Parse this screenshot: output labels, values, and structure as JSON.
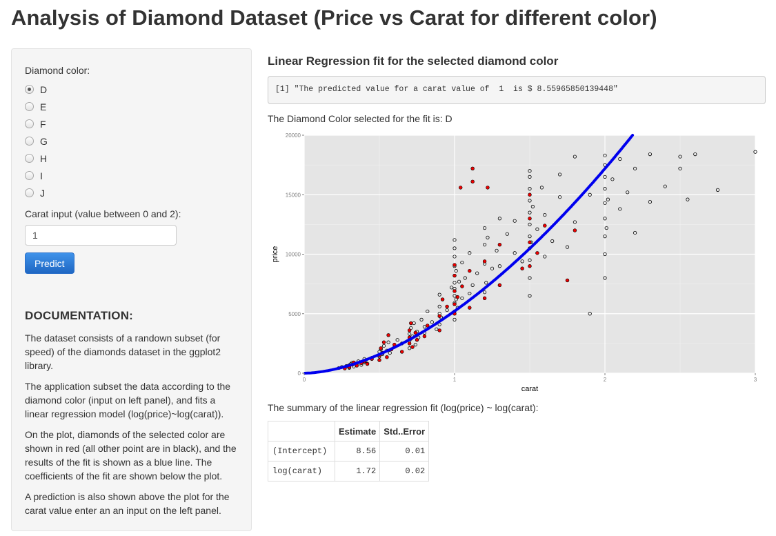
{
  "page": {
    "title": "Analysis of Diamond Dataset (Price vs Carat for different color)"
  },
  "sidebar": {
    "color_label": "Diamond color:",
    "color_options": [
      {
        "label": "D",
        "checked": true
      },
      {
        "label": "E",
        "checked": false
      },
      {
        "label": "F",
        "checked": false
      },
      {
        "label": "G",
        "checked": false
      },
      {
        "label": "H",
        "checked": false
      },
      {
        "label": "I",
        "checked": false
      },
      {
        "label": "J",
        "checked": false
      }
    ],
    "carat_label": "Carat input (value between 0 and 2):",
    "carat_value": "1",
    "predict_label": "Predict",
    "doc_heading": "DOCUMENTATION:",
    "doc_paragraphs": [
      "The dataset consists of a randown subset (for speed) of the diamonds dataset in the ggplot2 library.",
      "The application subset the data according to the diamond color (input on left panel), and fits a linear regression model (log(price)~log(carat)).",
      "On the plot, diamonds of the selected color are shown in red (all other point are in black), and the results of the fit is shown as a blue line. The coefficients of the fit are shown below the plot.",
      "A prediction is also shown above the plot for the carat value enter an an input on the left panel."
    ]
  },
  "main": {
    "heading": "Linear Regression fit for the selected diamond color",
    "prediction_text": "[1] \"The predicted value for a carat value of  1  is $ 8.55965850139448\"",
    "color_selected_text": "The Diamond Color selected for the fit is: D",
    "summary_text": "The summary of the linear regression fit (log(price) ~ log(carat):",
    "table": {
      "headers": [
        "",
        "Estimate",
        "Std..Error"
      ],
      "rows": [
        {
          "name": "(Intercept)",
          "estimate": "8.56",
          "std_error": "0.01"
        },
        {
          "name": "log(carat)",
          "estimate": "1.72",
          "std_error": "0.02"
        }
      ]
    }
  },
  "chart_data": {
    "type": "scatter",
    "xlabel": "carat",
    "ylabel": "price",
    "xlim": [
      0,
      3
    ],
    "ylim": [
      0,
      20000
    ],
    "xticks": [
      "0",
      "1",
      "2",
      "3"
    ],
    "yticks": [
      "0",
      "5000",
      "10000",
      "15000",
      "20000"
    ],
    "grid": true,
    "background": "#e5e5e5",
    "series": [
      {
        "color": "#000000",
        "marker": "open-circle",
        "points": [
          [
            0.23,
            430
          ],
          [
            0.25,
            520
          ],
          [
            0.28,
            600
          ],
          [
            0.3,
            680
          ],
          [
            0.3,
            450
          ],
          [
            0.31,
            780
          ],
          [
            0.32,
            900
          ],
          [
            0.33,
            560
          ],
          [
            0.35,
            800
          ],
          [
            0.36,
            1000
          ],
          [
            0.38,
            700
          ],
          [
            0.4,
            900
          ],
          [
            0.4,
            1200
          ],
          [
            0.41,
            1100
          ],
          [
            0.42,
            800
          ],
          [
            0.45,
            1300
          ],
          [
            0.5,
            1400
          ],
          [
            0.5,
            1800
          ],
          [
            0.5,
            1100
          ],
          [
            0.51,
            2000
          ],
          [
            0.52,
            1600
          ],
          [
            0.53,
            2300
          ],
          [
            0.55,
            1900
          ],
          [
            0.56,
            2600
          ],
          [
            0.57,
            1700
          ],
          [
            0.6,
            2200
          ],
          [
            0.62,
            2800
          ],
          [
            0.65,
            2500
          ],
          [
            0.7,
            2700
          ],
          [
            0.7,
            3300
          ],
          [
            0.7,
            2100
          ],
          [
            0.71,
            3800
          ],
          [
            0.71,
            2900
          ],
          [
            0.72,
            3100
          ],
          [
            0.73,
            4200
          ],
          [
            0.74,
            2400
          ],
          [
            0.75,
            3500
          ],
          [
            0.76,
            3000
          ],
          [
            0.78,
            4500
          ],
          [
            0.8,
            3400
          ],
          [
            0.8,
            3900
          ],
          [
            0.82,
            5200
          ],
          [
            0.85,
            4300
          ],
          [
            0.88,
            3700
          ],
          [
            0.9,
            4100
          ],
          [
            0.9,
            5000
          ],
          [
            0.9,
            5600
          ],
          [
            0.9,
            6600
          ],
          [
            0.91,
            4700
          ],
          [
            0.92,
            6200
          ],
          [
            0.95,
            5300
          ],
          [
            0.98,
            7200
          ],
          [
            1.0,
            4500
          ],
          [
            1.0,
            5200
          ],
          [
            1.0,
            5900
          ],
          [
            1.0,
            6500
          ],
          [
            1.0,
            7100
          ],
          [
            1.0,
            7600
          ],
          [
            1.0,
            8200
          ],
          [
            1.0,
            9000
          ],
          [
            1.0,
            9800
          ],
          [
            1.0,
            10500
          ],
          [
            1.0,
            11200
          ],
          [
            1.01,
            6200
          ],
          [
            1.01,
            8600
          ],
          [
            1.02,
            5500
          ],
          [
            1.03,
            7700
          ],
          [
            1.05,
            6300
          ],
          [
            1.05,
            9300
          ],
          [
            1.07,
            8000
          ],
          [
            1.1,
            6700
          ],
          [
            1.1,
            10100
          ],
          [
            1.12,
            7400
          ],
          [
            1.15,
            8400
          ],
          [
            1.2,
            6800
          ],
          [
            1.2,
            9200
          ],
          [
            1.2,
            10800
          ],
          [
            1.2,
            12200
          ],
          [
            1.21,
            7600
          ],
          [
            1.22,
            11400
          ],
          [
            1.25,
            8800
          ],
          [
            1.28,
            10300
          ],
          [
            1.3,
            9000
          ],
          [
            1.3,
            13000
          ],
          [
            1.3,
            7400
          ],
          [
            1.35,
            11700
          ],
          [
            1.4,
            10100
          ],
          [
            1.4,
            12800
          ],
          [
            1.45,
            9400
          ],
          [
            1.5,
            6500
          ],
          [
            1.5,
            8000
          ],
          [
            1.5,
            9500
          ],
          [
            1.5,
            10500
          ],
          [
            1.5,
            11500
          ],
          [
            1.5,
            12500
          ],
          [
            1.5,
            13500
          ],
          [
            1.5,
            14500
          ],
          [
            1.5,
            15500
          ],
          [
            1.5,
            16500
          ],
          [
            1.5,
            17000
          ],
          [
            1.51,
            11000
          ],
          [
            1.52,
            14000
          ],
          [
            1.55,
            12100
          ],
          [
            1.58,
            15600
          ],
          [
            1.6,
            9800
          ],
          [
            1.6,
            13300
          ],
          [
            1.65,
            11100
          ],
          [
            1.7,
            14800
          ],
          [
            1.7,
            16700
          ],
          [
            1.75,
            10600
          ],
          [
            1.8,
            12700
          ],
          [
            1.8,
            18200
          ],
          [
            1.9,
            15000
          ],
          [
            1.9,
            5000
          ],
          [
            2.0,
            8000
          ],
          [
            2.0,
            10000
          ],
          [
            2.0,
            11500
          ],
          [
            2.0,
            13000
          ],
          [
            2.0,
            14300
          ],
          [
            2.0,
            15500
          ],
          [
            2.0,
            16500
          ],
          [
            2.0,
            17500
          ],
          [
            2.0,
            18300
          ],
          [
            2.01,
            12200
          ],
          [
            2.02,
            14600
          ],
          [
            2.05,
            16300
          ],
          [
            2.1,
            13800
          ],
          [
            2.1,
            18000
          ],
          [
            2.15,
            15200
          ],
          [
            2.2,
            11800
          ],
          [
            2.2,
            17200
          ],
          [
            2.3,
            14400
          ],
          [
            2.3,
            18400
          ],
          [
            2.4,
            15700
          ],
          [
            2.5,
            17200
          ],
          [
            2.5,
            18200
          ],
          [
            2.55,
            14600
          ],
          [
            2.6,
            18400
          ],
          [
            2.75,
            15400
          ],
          [
            3.0,
            18600
          ]
        ]
      },
      {
        "color": "#ee0000",
        "marker": "filled-circle",
        "points": [
          [
            0.27,
            400
          ],
          [
            0.29,
            600
          ],
          [
            0.3,
            520
          ],
          [
            0.32,
            720
          ],
          [
            0.33,
            900
          ],
          [
            0.35,
            640
          ],
          [
            0.38,
            850
          ],
          [
            0.4,
            1000
          ],
          [
            0.42,
            780
          ],
          [
            0.45,
            1200
          ],
          [
            0.5,
            1500
          ],
          [
            0.5,
            1100
          ],
          [
            0.51,
            2100
          ],
          [
            0.52,
            1700
          ],
          [
            0.53,
            2600
          ],
          [
            0.55,
            1350
          ],
          [
            0.56,
            3200
          ],
          [
            0.58,
            2000
          ],
          [
            0.6,
            2400
          ],
          [
            0.65,
            1800
          ],
          [
            0.7,
            2500
          ],
          [
            0.7,
            3000
          ],
          [
            0.7,
            3600
          ],
          [
            0.71,
            4200
          ],
          [
            0.72,
            2200
          ],
          [
            0.74,
            3400
          ],
          [
            0.75,
            2800
          ],
          [
            0.8,
            3100
          ],
          [
            0.82,
            4000
          ],
          [
            0.9,
            3600
          ],
          [
            0.9,
            4800
          ],
          [
            0.92,
            6200
          ],
          [
            0.95,
            5600
          ],
          [
            1.0,
            5000
          ],
          [
            1.0,
            5800
          ],
          [
            1.0,
            6900
          ],
          [
            1.0,
            8200
          ],
          [
            1.0,
            9100
          ],
          [
            1.02,
            6400
          ],
          [
            1.04,
            15600
          ],
          [
            1.05,
            7300
          ],
          [
            1.1,
            5500
          ],
          [
            1.1,
            8600
          ],
          [
            1.12,
            16100
          ],
          [
            1.12,
            17200
          ],
          [
            1.2,
            6300
          ],
          [
            1.2,
            9400
          ],
          [
            1.22,
            15600
          ],
          [
            1.3,
            7400
          ],
          [
            1.3,
            10800
          ],
          [
            1.45,
            8800
          ],
          [
            1.5,
            9000
          ],
          [
            1.5,
            11000
          ],
          [
            1.5,
            13000
          ],
          [
            1.5,
            15000
          ],
          [
            1.55,
            10100
          ],
          [
            1.6,
            12400
          ],
          [
            1.75,
            7800
          ],
          [
            1.8,
            12000
          ]
        ]
      },
      {
        "name": "fit",
        "color": "#0000ee",
        "marker": "line",
        "intercept": 8.56,
        "slope": 1.72
      }
    ]
  }
}
